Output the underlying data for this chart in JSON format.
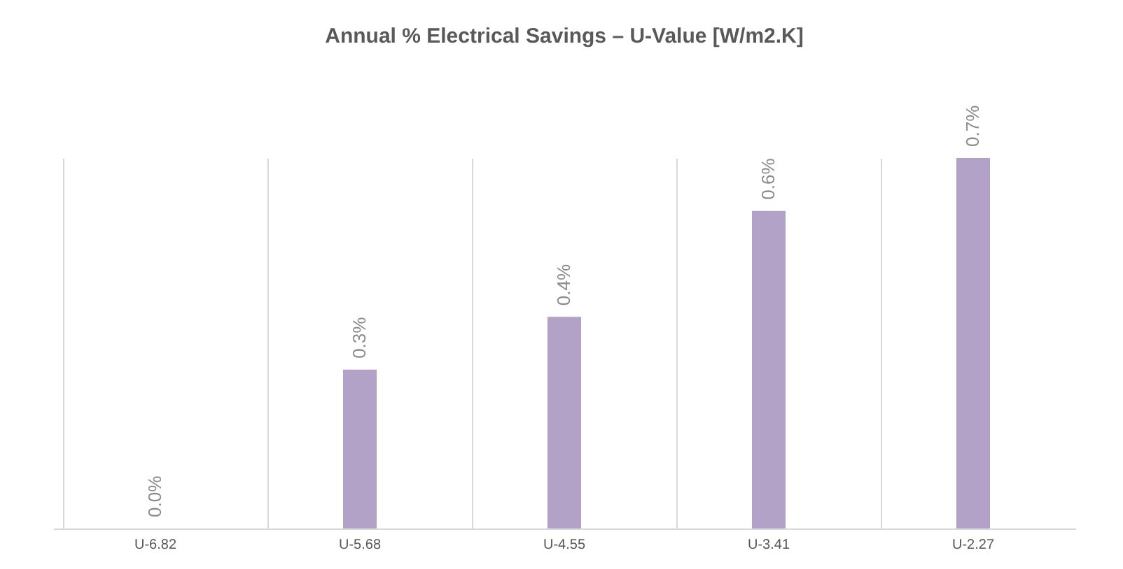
{
  "chart_data": {
    "type": "bar",
    "title": "Annual % Electrical Savings – U-Value [W/m2.K]",
    "categories": [
      "U-6.82",
      "U-5.68",
      "U-4.55",
      "U-3.41",
      "U-2.27"
    ],
    "values": [
      0.0,
      0.3,
      0.4,
      0.6,
      0.7
    ],
    "value_labels": [
      "0.0%",
      "0.3%",
      "0.4%",
      "0.6%",
      "0.7%"
    ],
    "color": "#b3a2c7",
    "grid": "x"
  }
}
